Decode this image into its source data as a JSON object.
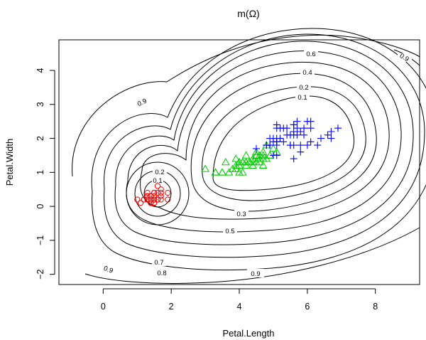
{
  "chart_data": {
    "type": "scatter",
    "title": "m(Ω)",
    "xlabel": "Petal.Length",
    "ylabel": "Petal.Width",
    "xlim": [
      -1.3,
      9.3
    ],
    "ylim": [
      -2.3,
      4.9
    ],
    "xticks": [
      0,
      2,
      4,
      6,
      8
    ],
    "yticks": [
      -2,
      -1,
      0,
      1,
      2,
      3,
      4
    ],
    "grid": false,
    "series": [
      {
        "marker": "circle",
        "color": "#ff0000",
        "points": [
          [
            1.4,
            0.2
          ],
          [
            1.4,
            0.2
          ],
          [
            1.3,
            0.2
          ],
          [
            1.5,
            0.2
          ],
          [
            1.4,
            0.2
          ],
          [
            1.7,
            0.4
          ],
          [
            1.4,
            0.3
          ],
          [
            1.5,
            0.2
          ],
          [
            1.4,
            0.2
          ],
          [
            1.5,
            0.1
          ],
          [
            1.5,
            0.2
          ],
          [
            1.6,
            0.2
          ],
          [
            1.4,
            0.1
          ],
          [
            1.1,
            0.1
          ],
          [
            1.2,
            0.2
          ],
          [
            1.5,
            0.4
          ],
          [
            1.3,
            0.4
          ],
          [
            1.4,
            0.3
          ],
          [
            1.7,
            0.3
          ],
          [
            1.5,
            0.3
          ],
          [
            1.7,
            0.2
          ],
          [
            1.5,
            0.4
          ],
          [
            1.0,
            0.2
          ],
          [
            1.7,
            0.5
          ],
          [
            1.9,
            0.2
          ],
          [
            1.6,
            0.2
          ],
          [
            1.6,
            0.4
          ],
          [
            1.5,
            0.2
          ],
          [
            1.4,
            0.2
          ],
          [
            1.6,
            0.2
          ],
          [
            1.6,
            0.2
          ],
          [
            1.5,
            0.4
          ],
          [
            1.5,
            0.1
          ],
          [
            1.4,
            0.2
          ],
          [
            1.5,
            0.2
          ],
          [
            1.2,
            0.2
          ],
          [
            1.3,
            0.2
          ],
          [
            1.4,
            0.1
          ],
          [
            1.3,
            0.2
          ],
          [
            1.5,
            0.2
          ],
          [
            1.3,
            0.3
          ],
          [
            1.3,
            0.3
          ],
          [
            1.3,
            0.2
          ],
          [
            1.6,
            0.6
          ],
          [
            1.9,
            0.4
          ],
          [
            1.4,
            0.3
          ],
          [
            1.6,
            0.2
          ],
          [
            1.4,
            0.2
          ],
          [
            1.5,
            0.2
          ],
          [
            1.4,
            0.2
          ]
        ]
      },
      {
        "marker": "triangle",
        "color": "#00cd00",
        "points": [
          [
            4.7,
            1.4
          ],
          [
            4.5,
            1.5
          ],
          [
            4.9,
            1.5
          ],
          [
            4.0,
            1.3
          ],
          [
            4.6,
            1.5
          ],
          [
            4.5,
            1.3
          ],
          [
            4.7,
            1.6
          ],
          [
            3.3,
            1.0
          ],
          [
            4.6,
            1.3
          ],
          [
            3.9,
            1.4
          ],
          [
            3.5,
            1.0
          ],
          [
            4.2,
            1.5
          ],
          [
            4.0,
            1.0
          ],
          [
            4.7,
            1.4
          ],
          [
            3.6,
            1.3
          ],
          [
            4.4,
            1.4
          ],
          [
            4.5,
            1.5
          ],
          [
            4.1,
            1.0
          ],
          [
            4.5,
            1.5
          ],
          [
            3.9,
            1.1
          ],
          [
            4.8,
            1.8
          ],
          [
            4.0,
            1.3
          ],
          [
            4.9,
            1.5
          ],
          [
            4.7,
            1.2
          ],
          [
            4.3,
            1.3
          ],
          [
            4.4,
            1.4
          ],
          [
            4.8,
            1.4
          ],
          [
            5.0,
            1.7
          ],
          [
            4.5,
            1.5
          ],
          [
            3.5,
            1.0
          ],
          [
            3.8,
            1.1
          ],
          [
            3.7,
            1.0
          ],
          [
            3.9,
            1.2
          ],
          [
            5.1,
            1.6
          ],
          [
            4.5,
            1.5
          ],
          [
            4.5,
            1.6
          ],
          [
            4.7,
            1.5
          ],
          [
            4.4,
            1.3
          ],
          [
            4.1,
            1.3
          ],
          [
            4.0,
            1.3
          ],
          [
            4.4,
            1.2
          ],
          [
            4.6,
            1.4
          ],
          [
            4.0,
            1.2
          ],
          [
            3.3,
            1.0
          ],
          [
            4.2,
            1.3
          ],
          [
            4.2,
            1.2
          ],
          [
            4.2,
            1.3
          ],
          [
            4.3,
            1.3
          ],
          [
            3.0,
            1.1
          ],
          [
            4.1,
            1.3
          ]
        ]
      },
      {
        "marker": "plus",
        "color": "#0000ff",
        "points": [
          [
            6.0,
            2.5
          ],
          [
            5.1,
            1.9
          ],
          [
            5.9,
            2.1
          ],
          [
            5.6,
            1.8
          ],
          [
            5.8,
            2.2
          ],
          [
            6.6,
            2.1
          ],
          [
            4.5,
            1.7
          ],
          [
            6.3,
            1.8
          ],
          [
            5.8,
            1.8
          ],
          [
            6.1,
            2.5
          ],
          [
            5.1,
            2.0
          ],
          [
            5.3,
            1.9
          ],
          [
            5.5,
            2.1
          ],
          [
            5.0,
            2.0
          ],
          [
            5.1,
            2.4
          ],
          [
            5.3,
            2.3
          ],
          [
            5.5,
            1.8
          ],
          [
            6.7,
            2.2
          ],
          [
            6.9,
            2.3
          ],
          [
            5.0,
            1.5
          ],
          [
            5.7,
            2.3
          ],
          [
            4.9,
            2.0
          ],
          [
            6.7,
            2.0
          ],
          [
            4.9,
            1.8
          ],
          [
            5.7,
            2.1
          ],
          [
            6.0,
            1.8
          ],
          [
            4.8,
            1.8
          ],
          [
            4.9,
            1.8
          ],
          [
            5.6,
            2.1
          ],
          [
            5.8,
            1.6
          ],
          [
            6.1,
            1.9
          ],
          [
            6.4,
            2.0
          ],
          [
            5.6,
            2.2
          ],
          [
            5.1,
            1.5
          ],
          [
            5.6,
            1.4
          ],
          [
            6.1,
            2.3
          ],
          [
            5.6,
            2.4
          ],
          [
            5.5,
            1.8
          ],
          [
            4.8,
            1.8
          ],
          [
            5.4,
            2.1
          ],
          [
            5.6,
            2.4
          ],
          [
            5.1,
            2.3
          ],
          [
            5.1,
            1.9
          ],
          [
            5.9,
            2.3
          ],
          [
            5.7,
            2.5
          ],
          [
            5.2,
            2.3
          ],
          [
            5.0,
            1.9
          ],
          [
            5.2,
            2.0
          ],
          [
            5.4,
            2.3
          ],
          [
            5.1,
            1.8
          ]
        ]
      }
    ],
    "contour_levels": [
      "0.1",
      "0.2",
      "0.3",
      "0.4",
      "0.5",
      "0.6",
      "0.7",
      "0.8",
      "0.9"
    ],
    "contour_label_text": {
      "top_06": "0.6",
      "top_04": "0.4",
      "top_02": "0.2",
      "top_01": "0.1",
      "left_09": "0.9",
      "right_09": "0.9",
      "small_02": "0.2",
      "small_01": "0.1",
      "mid_03": "0.3",
      "mid_05": "0.5",
      "low_07": "0.7",
      "low_08": "0.8",
      "bl_09": "0.9",
      "br_09": "0.9"
    }
  }
}
